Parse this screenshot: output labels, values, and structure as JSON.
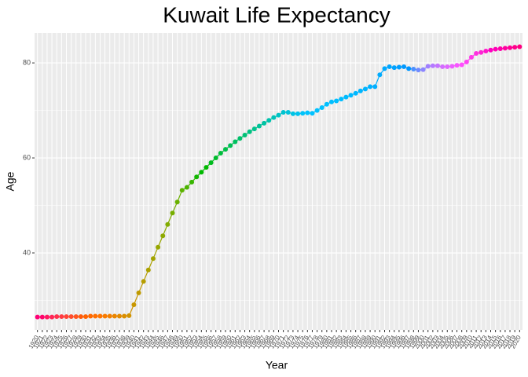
{
  "chart_data": {
    "type": "line",
    "title": "Kuwait Life Expectancy",
    "x_label": "Year",
    "y_label": "Age",
    "categories": [
      1920,
      1921,
      1922,
      1923,
      1924,
      1925,
      1926,
      1927,
      1928,
      1929,
      1930,
      1931,
      1932,
      1933,
      1934,
      1935,
      1936,
      1937,
      1938,
      1939,
      1940,
      1941,
      1942,
      1943,
      1944,
      1945,
      1946,
      1947,
      1948,
      1949,
      1950,
      1951,
      1952,
      1953,
      1954,
      1955,
      1956,
      1957,
      1958,
      1959,
      1960,
      1961,
      1962,
      1963,
      1964,
      1965,
      1966,
      1967,
      1968,
      1969,
      1970,
      1971,
      1972,
      1973,
      1974,
      1975,
      1976,
      1977,
      1978,
      1979,
      1980,
      1981,
      1982,
      1983,
      1984,
      1985,
      1986,
      1987,
      1988,
      1989,
      1990,
      1991,
      1992,
      1993,
      1994,
      1995,
      1996,
      1997,
      1998,
      1999,
      2000,
      2001,
      2002,
      2003,
      2004,
      2005,
      2006,
      2007,
      2008,
      2009,
      2010,
      2011,
      2012,
      2013,
      2014,
      2015,
      2016,
      2017,
      2018,
      2019,
      2020
    ],
    "values": [
      26.5,
      26.5,
      26.5,
      26.5,
      26.6,
      26.6,
      26.6,
      26.6,
      26.6,
      26.6,
      26.6,
      26.7,
      26.7,
      26.7,
      26.7,
      26.7,
      26.7,
      26.7,
      26.7,
      26.8,
      29.1,
      31.6,
      34.0,
      36.4,
      38.8,
      41.2,
      43.6,
      46.0,
      48.4,
      50.7,
      53.2,
      53.8,
      54.9,
      56.0,
      57.0,
      58.0,
      59.0,
      60.0,
      61.0,
      61.8,
      62.6,
      63.4,
      64.1,
      64.8,
      65.5,
      66.1,
      66.7,
      67.3,
      67.9,
      68.5,
      69.0,
      69.6,
      69.6,
      69.3,
      69.3,
      69.4,
      69.5,
      69.4,
      70.0,
      70.6,
      71.3,
      71.8,
      72.0,
      72.4,
      72.8,
      73.2,
      73.6,
      74.1,
      74.5,
      75.0,
      75.0,
      77.5,
      78.8,
      79.2,
      79.0,
      79.1,
      79.2,
      78.8,
      78.7,
      78.5,
      78.6,
      79.3,
      79.4,
      79.4,
      79.2,
      79.2,
      79.3,
      79.5,
      79.6,
      80.2,
      81.2,
      82.0,
      82.2,
      82.5,
      82.7,
      82.9,
      83.0,
      83.1,
      83.2,
      83.3,
      83.4
    ],
    "color_scale": {
      "hue_range": [
        15,
        375
      ],
      "chroma": 100,
      "luminance": 65
    },
    "ylim": [
      23.8,
      86.3
    ],
    "yticks": [
      40,
      60,
      80
    ],
    "yminor_ticks": [
      30,
      50,
      70
    ],
    "grid": true,
    "panel_color": "#ebebeb"
  }
}
